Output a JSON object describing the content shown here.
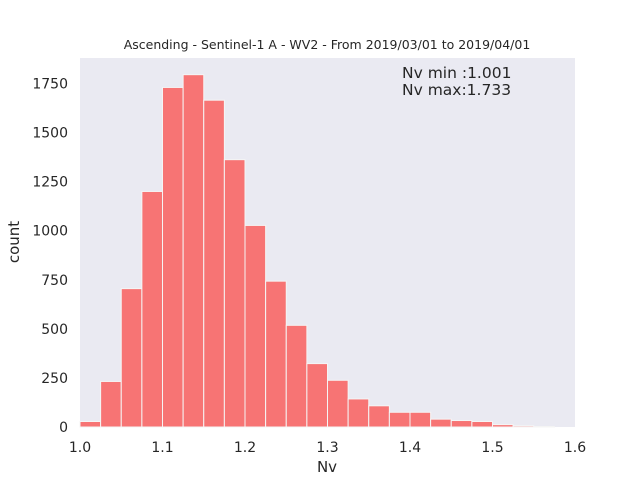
{
  "chart_data": {
    "type": "bar",
    "title": "Ascending - Sentinel-1 A - WV2 - From 2019/03/01 to 2019/04/01",
    "xlabel": "Nv",
    "ylabel": "count",
    "xlim": [
      1.0,
      1.6
    ],
    "ylim": [
      0,
      1880
    ],
    "xticks": [
      "1.0",
      "1.1",
      "1.2",
      "1.3",
      "1.4",
      "1.5",
      "1.6"
    ],
    "xtick_values": [
      1.0,
      1.1,
      1.2,
      1.3,
      1.4,
      1.5,
      1.6
    ],
    "yticks": [
      "0",
      "250",
      "500",
      "750",
      "1000",
      "1250",
      "1500",
      "1750"
    ],
    "ytick_values": [
      0,
      250,
      500,
      750,
      1000,
      1250,
      1500,
      1750
    ],
    "grid": false,
    "bin_edges_start": 1.0,
    "bin_width": 0.025,
    "values": [
      28,
      232,
      705,
      1200,
      1730,
      1795,
      1665,
      1362,
      1027,
      743,
      518,
      323,
      238,
      143,
      108,
      75,
      75,
      40,
      33,
      28,
      12,
      6,
      2
    ],
    "bar_color": "#f77474",
    "background_color": "#eaeaf2",
    "annotations": [
      "Nv min :1.001",
      "Nv max:1.733"
    ]
  }
}
